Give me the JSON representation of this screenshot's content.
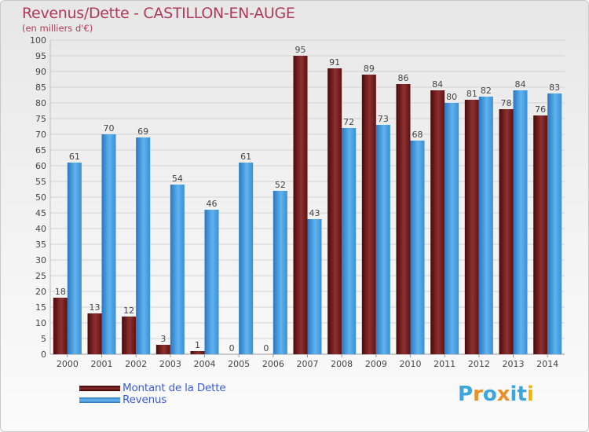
{
  "header": {
    "title": "Revenus/Dette - CASTILLON-EN-AUGE",
    "subtitle": "(en milliers d'€)"
  },
  "legend": {
    "items": [
      {
        "label": "Montant de la Dette",
        "color": "#7a1c1c"
      },
      {
        "label": "Revenus",
        "color": "#3f9be0"
      }
    ]
  },
  "logo": {
    "text": "Proxiti",
    "colors": [
      "#3aa6dd",
      "#e8902a",
      "#3aa6dd",
      "#e8902a",
      "#3aa6dd",
      "#3aa6dd",
      "#f0b400"
    ]
  },
  "chart_data": {
    "type": "bar",
    "title": "Revenus/Dette - CASTILLON-EN-AUGE",
    "subtitle": "(en milliers d'€)",
    "categories": [
      "2000",
      "2001",
      "2002",
      "2003",
      "2004",
      "2005",
      "2006",
      "2007",
      "2008",
      "2009",
      "2010",
      "2011",
      "2012",
      "2013",
      "2014"
    ],
    "series": [
      {
        "name": "Montant de la Dette",
        "color": "#7a1c1c",
        "values": [
          18,
          13,
          12,
          3,
          1,
          0,
          0,
          95,
          91,
          89,
          86,
          84,
          81,
          78,
          76
        ]
      },
      {
        "name": "Revenus",
        "color": "#3f9be0",
        "values": [
          61,
          70,
          69,
          54,
          46,
          61,
          52,
          43,
          72,
          73,
          68,
          80,
          82,
          84,
          83
        ]
      }
    ],
    "ylim": [
      0,
      100
    ],
    "yticks": [
      0,
      5,
      10,
      15,
      20,
      25,
      30,
      35,
      40,
      45,
      50,
      55,
      60,
      65,
      70,
      75,
      80,
      85,
      90,
      95,
      100
    ],
    "grid": true,
    "legend_position": "bottom-left"
  }
}
